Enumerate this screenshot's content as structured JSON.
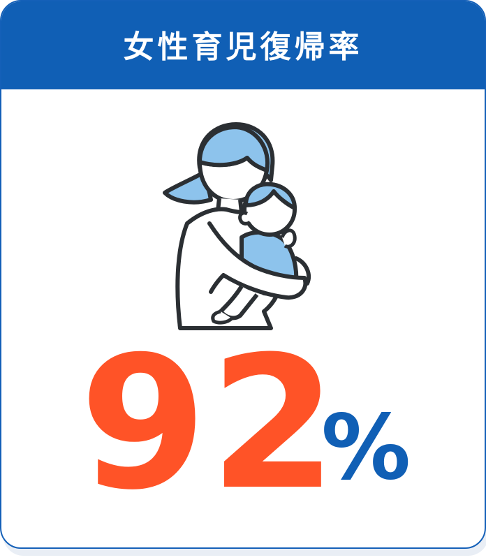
{
  "header": {
    "title": "女性育児復帰率"
  },
  "illustration": {
    "icon": "mother-holding-baby-icon"
  },
  "stat": {
    "value": "92",
    "unit": "%"
  },
  "colors": {
    "header_bg": "#105fb5",
    "value": "#ff5327",
    "unit": "#105fb5",
    "illustration_fill": "#8dc3ec",
    "illustration_stroke": "#2b2f33"
  }
}
